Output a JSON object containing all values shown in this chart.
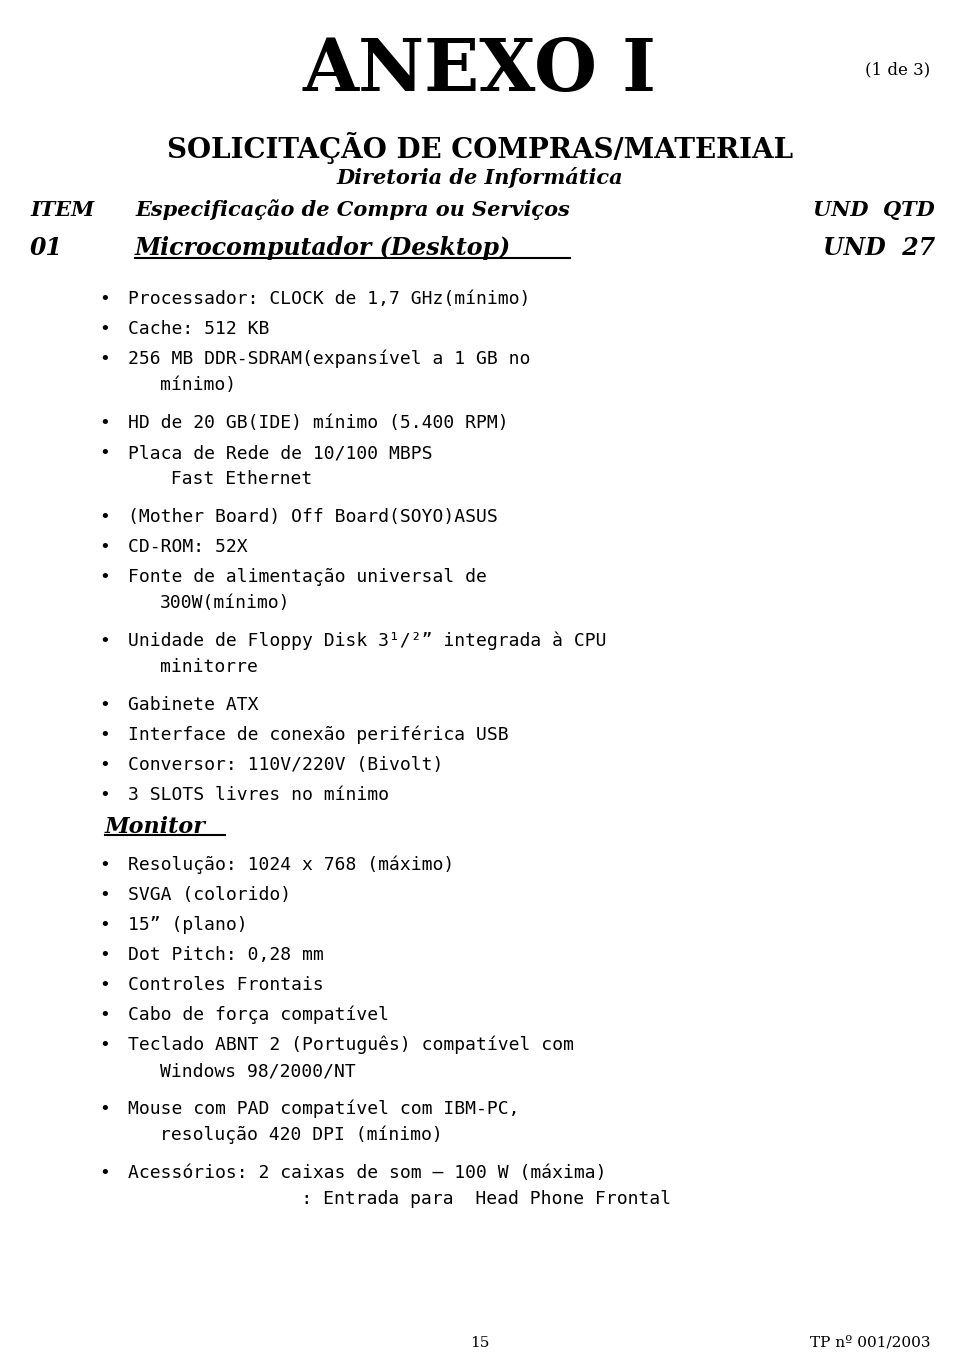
{
  "bg_color": "#ffffff",
  "title_anexo": "ANEXO I",
  "title_page": "(1 de 3)",
  "title_sol": "SOLICITAÇÃO DE COMPRAS/MATERIAL",
  "title_dir": "Diretoria de Informática",
  "col_item": "ITEM",
  "col_spec": "Especificação de Compra ou Serviços",
  "col_und": "UND  QTD",
  "item_num": "01",
  "item_desc": "Microcomputador (Desktop)",
  "item_und": "UND  27",
  "bullet_items": [
    [
      "Processador: CLOCK de 1,7 GHz(mínimo)"
    ],
    [
      "Cache: 512 KB"
    ],
    [
      "256 MB DDR-SDRAM(expansível a 1 GB no",
      "mínimo)"
    ],
    [
      "HD de 20 GB(IDE) mínimo (5.400 RPM)"
    ],
    [
      "Placa de Rede de 10/100 MBPS",
      " Fast Ethernet"
    ],
    [
      "(Mother Board) Off Board(SOYO)ASUS"
    ],
    [
      "CD-ROM: 52X"
    ],
    [
      "Fonte de alimentação universal de",
      "300W(mínimo)"
    ],
    [
      "Unidade de Floppy Disk 3¹/²” integrada à CPU",
      "minitorre"
    ],
    [
      "Gabinete ATX"
    ],
    [
      "Interface de conexão periférica USB"
    ],
    [
      "Conversor: 110V/220V (Bivolt)"
    ],
    [
      "3 SLOTS livres no mínimo"
    ]
  ],
  "monitor_label": "Monitor",
  "monitor_items": [
    [
      "Resolução: 1024 x 768 (máximo)"
    ],
    [
      "SVGA (colorido)"
    ],
    [
      "15” (plano)"
    ],
    [
      "Dot Pitch: 0,28 mm"
    ],
    [
      "Controles Frontais"
    ],
    [
      "Cabo de força compatível"
    ],
    [
      "Teclado ABNT 2 (Português) compatível com",
      "Windows 98/2000/NT"
    ],
    [
      "Mouse com PAD compatível com IBM-PC,",
      "resolução 420 DPI (mínimo)"
    ],
    [
      "Acessórios: 2 caixas de som – 100 W (máxima)",
      "             : Entrada para  Head Phone Frontal"
    ]
  ],
  "footer_page": "15",
  "footer_ref": "TP nº 001/2003",
  "font_mono": "DejaVu Sans Mono",
  "font_serif": "DejaVu Serif",
  "font_sans": "DejaVu Sans"
}
